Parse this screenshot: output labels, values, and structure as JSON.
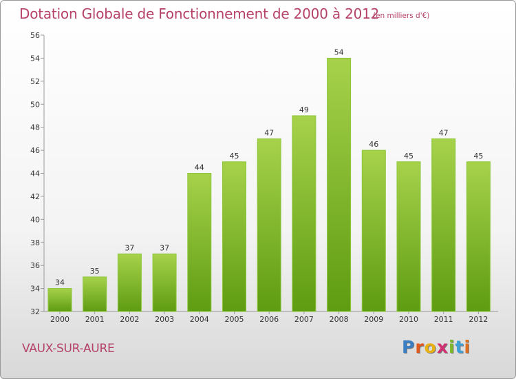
{
  "title": "Dotation Globale de Fonctionnement de 2000 à 2012",
  "unit_note": "(en milliers d'€)",
  "commune": "VAUX-SUR-AURE",
  "logo": {
    "text": "Proxiti",
    "letter_colors": [
      "#3a7fc4",
      "#e05a20",
      "#e8b010",
      "#d03070",
      "#7ab828",
      "#3aa0d8",
      "#e07020"
    ]
  },
  "colors": {
    "bar_light": "#a6d24a",
    "bar_dark": "#5e9c12",
    "title": "#b5426a"
  },
  "chart_data": {
    "type": "bar",
    "categories": [
      "2000",
      "2001",
      "2002",
      "2003",
      "2004",
      "2005",
      "2006",
      "2007",
      "2008",
      "2009",
      "2010",
      "2011",
      "2012"
    ],
    "values": [
      34,
      35,
      37,
      37,
      44,
      45,
      47,
      49,
      54,
      46,
      45,
      47,
      45
    ],
    "title": "Dotation Globale de Fonctionnement de 2000 à 2012",
    "ylim": [
      32,
      56
    ],
    "yticks": [
      32,
      34,
      36,
      38,
      40,
      42,
      44,
      46,
      48,
      50,
      52,
      54,
      56
    ],
    "grid": false,
    "data_labels": true
  }
}
